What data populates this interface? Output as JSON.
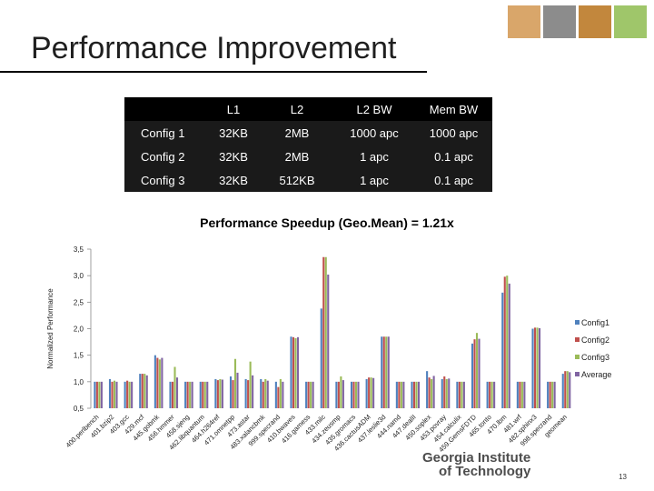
{
  "slide": {
    "title": "Performance Improvement",
    "speedup": "Performance Speedup (Geo.Mean) = 1.21x",
    "page_number": "13",
    "logo_line1": "Georgia Institute",
    "logo_line2": "of Technology"
  },
  "table": {
    "headers": [
      "",
      "L1",
      "L2",
      "L2 BW",
      "Mem BW"
    ],
    "rows": [
      [
        "Config 1",
        "32KB",
        "2MB",
        "1000 apc",
        "1000 apc"
      ],
      [
        "Config 2",
        "32KB",
        "2MB",
        "1 apc",
        "0.1 apc"
      ],
      [
        "Config 3",
        "32KB",
        "512KB",
        "1 apc",
        "0.1 apc"
      ]
    ]
  },
  "colors": {
    "config1": "#4f81bd",
    "config2": "#c0504d",
    "config3": "#9bbb59",
    "average": "#8064a2",
    "thumb1": "#d9a66a",
    "thumb2": "#8c8c8c",
    "thumb3": "#c2873d",
    "thumb4": "#9fc66a"
  },
  "chart_data": {
    "type": "bar",
    "title": "",
    "ylabel": "Normalized Performance",
    "ylim": [
      0.5,
      3.5
    ],
    "yticks": [
      "0,5",
      "1,0",
      "1,5",
      "2,0",
      "2,5",
      "3,0",
      "3,5"
    ],
    "categories": [
      "400.perlbench",
      "401.bzip2",
      "403.gcc",
      "429.mcf",
      "445.gobmk",
      "456.hmmer",
      "458.sjeng",
      "462.libquantum",
      "464.h264ref",
      "471.omnetpp",
      "473.astar",
      "483.xalancbmk",
      "999.specrand",
      "410.bwaves",
      "416.gamess",
      "433.milc",
      "434.zeusmp",
      "435.gromacs",
      "436.cactusADM",
      "437.leslie3d",
      "444.namd",
      "447.dealII",
      "450.soplex",
      "453.povray",
      "454.calculix",
      "459.GemsFDTD",
      "465.tonto",
      "470.lbm",
      "481.wrf",
      "482.sphinx3",
      "998.specrand",
      "geomean"
    ],
    "series": [
      {
        "name": "Config1",
        "values": [
          1.0,
          1.05,
          1.0,
          1.15,
          1.5,
          1.0,
          1.0,
          1.0,
          1.05,
          1.1,
          1.05,
          1.05,
          1.0,
          1.85,
          1.0,
          2.38,
          1.0,
          1.0,
          1.05,
          1.85,
          1.0,
          1.0,
          1.2,
          1.05,
          1.0,
          1.72,
          1.0,
          2.68,
          1.0,
          2.0,
          1.0,
          1.15
        ]
      },
      {
        "name": "Config2",
        "values": [
          1.0,
          1.0,
          1.02,
          1.15,
          1.45,
          1.0,
          1.0,
          1.0,
          1.03,
          1.03,
          1.03,
          1.0,
          0.9,
          1.84,
          1.0,
          3.35,
          1.0,
          1.0,
          1.08,
          1.85,
          1.0,
          1.0,
          1.08,
          1.1,
          1.0,
          1.8,
          1.0,
          2.98,
          1.0,
          2.02,
          1.0,
          1.2
        ]
      },
      {
        "name": "Config3",
        "values": [
          1.0,
          1.02,
          1.0,
          1.15,
          1.42,
          1.28,
          1.0,
          1.0,
          1.05,
          1.43,
          1.38,
          1.05,
          1.05,
          1.82,
          1.0,
          3.35,
          1.1,
          1.0,
          1.08,
          1.85,
          1.0,
          1.0,
          1.05,
          1.05,
          1.0,
          1.92,
          1.0,
          3.0,
          1.0,
          2.02,
          1.0,
          1.2
        ]
      },
      {
        "name": "Average",
        "values": [
          1.0,
          1.0,
          1.0,
          1.12,
          1.45,
          1.08,
          1.0,
          1.0,
          1.04,
          1.17,
          1.12,
          1.02,
          1.0,
          1.84,
          1.0,
          3.02,
          1.03,
          1.0,
          1.07,
          1.85,
          1.0,
          1.0,
          1.11,
          1.06,
          1.0,
          1.81,
          1.0,
          2.85,
          1.0,
          2.01,
          1.0,
          1.18
        ]
      }
    ],
    "legend": "right"
  }
}
